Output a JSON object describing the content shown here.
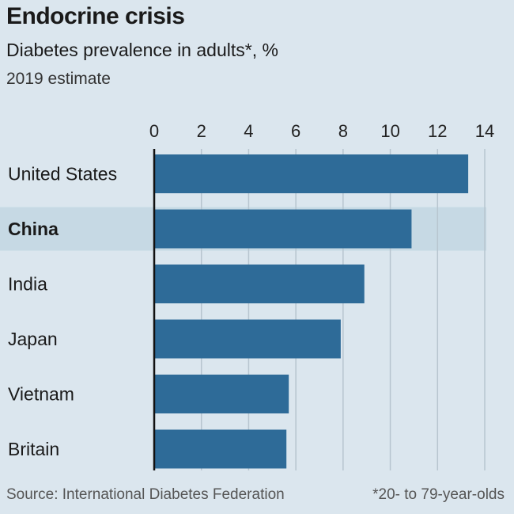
{
  "header": {
    "title": "Endocrine crisis",
    "subtitle": "Diabetes prevalence in adults*, %",
    "subsubtitle": "2019 estimate"
  },
  "footer": {
    "source": "Source: International Diabetes Federation",
    "footnote": "*20- to 79-year-olds"
  },
  "colors": {
    "bar": "#2e6b98",
    "highlight_band": "#c6d9e4",
    "grid": "#b7c5cf",
    "axis": "#111111",
    "background": "#dbe6ee"
  },
  "chart_data": {
    "type": "bar",
    "orientation": "horizontal",
    "categories": [
      "United States",
      "China",
      "India",
      "Japan",
      "Vietnam",
      "Britain"
    ],
    "values": [
      13.3,
      10.9,
      8.9,
      7.9,
      5.7,
      5.6
    ],
    "highlight": "China",
    "xlim": [
      0,
      14
    ],
    "xticks": [
      0,
      2,
      4,
      6,
      8,
      10,
      12,
      14
    ],
    "grid": true,
    "xaxis_position": "top"
  }
}
